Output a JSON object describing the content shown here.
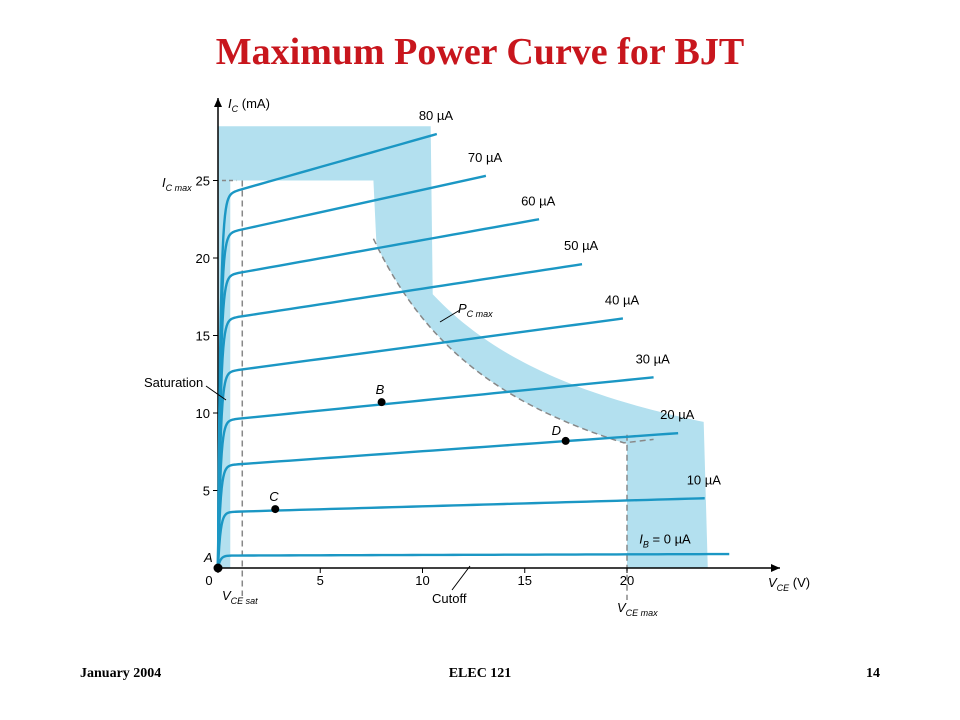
{
  "slide": {
    "title": "Maximum Power Curve for BJT",
    "footer_left": "January 2004",
    "footer_center": "ELEC 121",
    "footer_right": "14"
  },
  "colors": {
    "title": "#c8161d",
    "curve": "#1b97c4",
    "region": "#b3e0ef",
    "axis": "#000000",
    "dash": "#888888"
  },
  "chart_data": {
    "type": "line",
    "xlabel": "V",
    "xlabel_sub": "CE",
    "xunit": "(V)",
    "ylabel": "I",
    "ylabel_sub": "C",
    "yunit": "(mA)",
    "xlim": [
      0,
      27
    ],
    "ylim": [
      0,
      29
    ],
    "x_ticks": [
      "0",
      "5",
      "10",
      "15",
      "20"
    ],
    "x_tick_values": [
      0,
      5,
      10,
      15,
      20
    ],
    "y_ticks": [
      "5",
      "10",
      "15",
      "20",
      "25"
    ],
    "y_tick_values": [
      5,
      10,
      15,
      20,
      25
    ],
    "series": [
      {
        "name": "I_B = 0 µA",
        "label_main": "I",
        "label_sub": "B",
        "label_rest": " = 0 µA",
        "ib": 0,
        "i0": 0.8,
        "i_end": 0.9,
        "v_end": 25.0
      },
      {
        "name": "10 µA",
        "label_main": "10 µA",
        "ib": 10,
        "i0": 3.6,
        "i_end": 4.5,
        "v_end": 23.8
      },
      {
        "name": "20 µA",
        "label_main": "20 µA",
        "ib": 20,
        "i0": 6.6,
        "i_end": 8.7,
        "v_end": 22.5
      },
      {
        "name": "30 µA",
        "label_main": "30 µA",
        "ib": 30,
        "i0": 9.5,
        "i_end": 12.3,
        "v_end": 21.3
      },
      {
        "name": "40 µA",
        "label_main": "40 µA",
        "ib": 40,
        "i0": 12.6,
        "i_end": 16.1,
        "v_end": 19.8
      },
      {
        "name": "50 µA",
        "label_main": "50 µA",
        "ib": 50,
        "i0": 16.0,
        "i_end": 19.6,
        "v_end": 17.8
      },
      {
        "name": "60 µA",
        "label_main": "60 µA",
        "ib": 60,
        "i0": 18.8,
        "i_end": 22.5,
        "v_end": 15.7
      },
      {
        "name": "70 µA",
        "label_main": "70 µA",
        "ib": 70,
        "i0": 21.5,
        "i_end": 25.3,
        "v_end": 13.1
      },
      {
        "name": "80 µA",
        "label_main": "80 µA",
        "ib": 80,
        "i0": 24.0,
        "i_end": 28.0,
        "v_end": 10.7
      }
    ],
    "limits": {
      "ic_max": 25,
      "vce_max": 20,
      "vce_sat": 0.6,
      "pc_max_label": "P",
      "pc_max_sub": "C max",
      "ic_max_label": "I",
      "ic_max_sub": "C max",
      "vce_sat_label": "V",
      "vce_sat_sub": "CE sat",
      "vce_max_label": "V",
      "vce_max_sub": "CE max"
    },
    "points": [
      {
        "label": "A",
        "v": 0,
        "i": 0
      },
      {
        "label": "B",
        "v": 8.0,
        "i": 10.7
      },
      {
        "label": "C",
        "v": 2.8,
        "i": 3.8
      },
      {
        "label": "D",
        "v": 17.0,
        "i": 8.2
      }
    ],
    "annotations": {
      "saturation": "Saturation",
      "cutoff": "Cutoff"
    }
  }
}
